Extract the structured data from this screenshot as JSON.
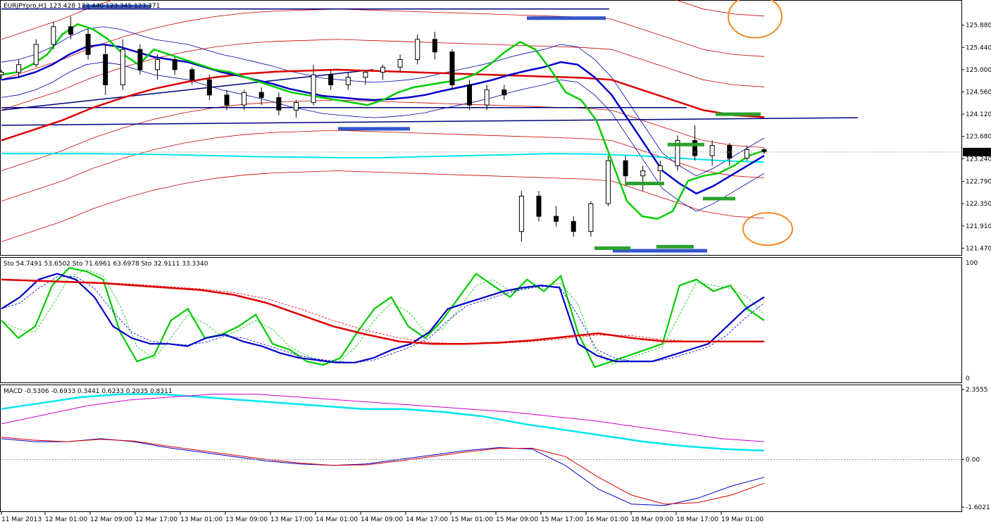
{
  "chart_data": [
    {
      "type": "line",
      "panel": "price",
      "title": "EURJPYpro,H1 123.428 123.440 123.345 123.371",
      "ylim": [
        121.35,
        126.35
      ],
      "y_ticks": [
        "125.880",
        "125.440",
        "125.000",
        "124.560",
        "124.120",
        "123.680",
        "123.240",
        "122.790",
        "122.350",
        "121.910",
        "121.470"
      ],
      "current_price": "123.371",
      "x_ticks": [
        "11 Mar 2013",
        "12 Mar 01:00",
        "12 Mar 09:00",
        "12 Mar 17:00",
        "13 Mar 01:00",
        "13 Mar 09:00",
        "13 Mar 17:00",
        "14 Mar 01:00",
        "14 Mar 09:00",
        "14 Mar 17:00",
        "15 Mar 01:00",
        "15 Mar 09:00",
        "15 Mar 17:00",
        "16 Mar 01:00",
        "18 Mar 09:00",
        "18 Mar 17:00",
        "19 Mar 01:00"
      ],
      "colors": {
        "up_candle": "#ffffff",
        "down_candle": "#000000",
        "ema_fast": "#00cc00",
        "ema_mid": "#0000cc",
        "ema_slow": "#dd0000",
        "bands": "#cc0000",
        "inner_bands": "#0000aa",
        "cyan_line": "#00e5ee",
        "trendline": "#000080",
        "support_marks": "#2ca02c",
        "resistance_marks": "#3355cc",
        "circle": "#f08a24"
      },
      "series": [
        {
          "values": [
            124.9,
            124.95,
            125.1,
            125.3,
            125.7,
            125.9,
            125.8,
            125.6,
            125.3,
            125.1,
            125.4,
            125.3,
            125.2,
            125.1,
            125.0,
            124.95,
            124.85,
            124.75,
            124.65,
            124.55,
            124.5,
            124.45,
            124.4,
            124.35,
            124.3,
            124.4,
            124.55,
            124.65,
            124.7,
            124.75,
            124.8,
            124.9,
            125.1,
            125.35,
            125.55,
            125.4,
            125.0,
            124.55,
            124.4,
            124.0,
            123.2,
            122.4,
            122.1,
            122.05,
            122.2,
            122.8,
            122.9,
            122.95,
            123.1,
            123.3,
            123.4
          ]
        },
        {
          "values": [
            124.8,
            124.85,
            124.95,
            125.1,
            125.3,
            125.45,
            125.5,
            125.45,
            125.35,
            125.25,
            125.2,
            125.15,
            125.05,
            124.95,
            124.88,
            124.8,
            124.72,
            124.62,
            124.55,
            124.48,
            124.45,
            124.42,
            124.4,
            124.42,
            124.45,
            124.5,
            124.58,
            124.65,
            124.72,
            124.8,
            124.9,
            124.98,
            125.05,
            125.15,
            125.1,
            124.85,
            124.5,
            124.0,
            123.5,
            123.0,
            122.75,
            122.55,
            122.7,
            122.9,
            123.1,
            123.3
          ]
        },
        {
          "values": [
            123.6,
            123.8,
            124.0,
            124.25,
            124.45,
            124.62,
            124.75,
            124.85,
            124.92,
            124.96,
            124.98,
            125.0,
            124.98,
            124.96,
            124.94,
            124.92,
            124.9,
            124.88,
            124.86,
            124.84,
            124.8,
            124.6,
            124.4,
            124.2,
            124.1,
            124.06
          ]
        },
        {
          "values": [
            123.34,
            123.34,
            123.34,
            123.33,
            123.32,
            123.3,
            123.28,
            123.27,
            123.26,
            123.26,
            123.28,
            123.3,
            123.32,
            123.34,
            123.33,
            123.3,
            123.25,
            123.2,
            123.17
          ]
        }
      ],
      "candles": [
        {
          "o": 124.9,
          "h": 125.0,
          "l": 124.8,
          "c": 124.95
        },
        {
          "o": 124.95,
          "h": 125.2,
          "l": 124.85,
          "c": 125.1
        },
        {
          "o": 125.1,
          "h": 125.6,
          "l": 125.05,
          "c": 125.5
        },
        {
          "o": 125.5,
          "h": 125.95,
          "l": 125.4,
          "c": 125.85
        },
        {
          "o": 125.85,
          "h": 126.05,
          "l": 125.6,
          "c": 125.7
        },
        {
          "o": 125.7,
          "h": 125.8,
          "l": 125.2,
          "c": 125.3
        },
        {
          "o": 125.3,
          "h": 125.5,
          "l": 124.5,
          "c": 124.7
        },
        {
          "o": 124.7,
          "h": 125.6,
          "l": 124.6,
          "c": 125.4
        },
        {
          "o": 125.4,
          "h": 125.5,
          "l": 124.9,
          "c": 125.0
        },
        {
          "o": 125.0,
          "h": 125.3,
          "l": 124.8,
          "c": 125.2
        },
        {
          "o": 125.2,
          "h": 125.25,
          "l": 124.9,
          "c": 125.0
        },
        {
          "o": 125.0,
          "h": 125.05,
          "l": 124.7,
          "c": 124.8
        },
        {
          "o": 124.8,
          "h": 124.9,
          "l": 124.4,
          "c": 124.5
        },
        {
          "o": 124.5,
          "h": 124.6,
          "l": 124.2,
          "c": 124.3
        },
        {
          "o": 124.3,
          "h": 124.6,
          "l": 124.2,
          "c": 124.55
        },
        {
          "o": 124.55,
          "h": 124.65,
          "l": 124.3,
          "c": 124.45
        },
        {
          "o": 124.45,
          "h": 124.55,
          "l": 124.1,
          "c": 124.2
        },
        {
          "o": 124.2,
          "h": 124.4,
          "l": 124.05,
          "c": 124.35
        },
        {
          "o": 124.35,
          "h": 125.1,
          "l": 124.3,
          "c": 124.9
        },
        {
          "o": 124.9,
          "h": 125.0,
          "l": 124.6,
          "c": 124.7
        },
        {
          "o": 124.7,
          "h": 124.95,
          "l": 124.6,
          "c": 124.85
        },
        {
          "o": 124.85,
          "h": 125.0,
          "l": 124.7,
          "c": 124.95
        },
        {
          "o": 124.95,
          "h": 125.1,
          "l": 124.8,
          "c": 125.05
        },
        {
          "o": 125.05,
          "h": 125.3,
          "l": 124.95,
          "c": 125.2
        },
        {
          "o": 125.2,
          "h": 125.7,
          "l": 125.1,
          "c": 125.6
        },
        {
          "o": 125.6,
          "h": 125.75,
          "l": 125.2,
          "c": 125.35
        },
        {
          "o": 125.35,
          "h": 125.4,
          "l": 124.6,
          "c": 124.7
        },
        {
          "o": 124.7,
          "h": 124.8,
          "l": 124.2,
          "c": 124.3
        },
        {
          "o": 124.3,
          "h": 124.7,
          "l": 124.2,
          "c": 124.6
        },
        {
          "o": 124.6,
          "h": 124.7,
          "l": 124.4,
          "c": 124.5
        },
        {
          "o": 121.8,
          "h": 122.6,
          "l": 121.6,
          "c": 122.5
        },
        {
          "o": 122.5,
          "h": 122.6,
          "l": 122.0,
          "c": 122.1
        },
        {
          "o": 122.1,
          "h": 122.3,
          "l": 121.9,
          "c": 122.0
        },
        {
          "o": 122.0,
          "h": 122.1,
          "l": 121.7,
          "c": 121.8
        },
        {
          "o": 121.8,
          "h": 122.4,
          "l": 121.7,
          "c": 122.35
        },
        {
          "o": 122.35,
          "h": 123.3,
          "l": 122.3,
          "c": 123.2
        },
        {
          "o": 123.2,
          "h": 123.3,
          "l": 122.7,
          "c": 122.9
        },
        {
          "o": 122.9,
          "h": 123.1,
          "l": 122.6,
          "c": 123.0
        },
        {
          "o": 123.0,
          "h": 123.2,
          "l": 122.8,
          "c": 123.1
        },
        {
          "o": 123.1,
          "h": 123.7,
          "l": 123.0,
          "c": 123.6
        },
        {
          "o": 123.6,
          "h": 123.9,
          "l": 123.2,
          "c": 123.3
        },
        {
          "o": 123.3,
          "h": 123.6,
          "l": 123.1,
          "c": 123.5
        },
        {
          "o": 123.5,
          "h": 123.55,
          "l": 123.1,
          "c": 123.25
        },
        {
          "o": 123.25,
          "h": 123.5,
          "l": 123.2,
          "c": 123.42
        },
        {
          "o": 123.42,
          "h": 123.45,
          "l": 123.34,
          "c": 123.37
        }
      ]
    },
    {
      "type": "line",
      "panel": "stochastic",
      "title": "Sto 54.7491 53.6502  Sto 71.6961 63.6978  Sto 32.9111 33.3340",
      "ylim": [
        0,
        100
      ],
      "y_ticks": [
        "100",
        "0"
      ],
      "series": [
        {
          "values": [
            50,
            35,
            45,
            80,
            95,
            92,
            85,
            40,
            15,
            20,
            50,
            60,
            35,
            38,
            45,
            55,
            30,
            25,
            15,
            12,
            18,
            40,
            60,
            70,
            45,
            35,
            50,
            70,
            90,
            80,
            70,
            85,
            75,
            88,
            40,
            10,
            15,
            20,
            25,
            30,
            80,
            85,
            75,
            80,
            60,
            50
          ]
        },
        {
          "values": [
            60,
            70,
            85,
            90,
            85,
            70,
            45,
            35,
            30,
            30,
            28,
            35,
            38,
            32,
            28,
            22,
            18,
            16,
            14,
            14,
            18,
            25,
            30,
            40,
            60,
            65,
            70,
            75,
            78,
            80,
            78,
            30,
            20,
            15,
            15,
            15,
            20,
            25,
            30,
            45,
            60,
            70
          ]
        },
        {
          "values": [
            85,
            84,
            83,
            82,
            80,
            78,
            76,
            72,
            65,
            55,
            45,
            38,
            32,
            30,
            30,
            31,
            33,
            36,
            39,
            35,
            32,
            32,
            32,
            32
          ]
        }
      ]
    },
    {
      "type": "line",
      "panel": "macd",
      "title": "MACD -0.5306 -0.6933 0.3441 0.6233 0.2035 0.8311",
      "ylim": [
        -1.6021,
        2.3555
      ],
      "y_ticks": [
        "2.3555",
        "0.00",
        "-1.6021"
      ],
      "series": [
        {
          "values": [
            1.7,
            1.9,
            2.1,
            2.2,
            2.2,
            2.1,
            2.0,
            1.9,
            1.8,
            1.7,
            1.7,
            1.6,
            1.45,
            1.2,
            1.0,
            0.8,
            0.6,
            0.45,
            0.35,
            0.3
          ]
        },
        {
          "values": [
            1.2,
            1.5,
            1.8,
            2.0,
            2.1,
            2.2,
            2.2,
            2.1,
            2.0,
            1.9,
            1.8,
            1.7,
            1.6,
            1.45,
            1.3,
            1.1,
            0.9,
            0.7,
            0.6
          ]
        },
        {
          "values": [
            0.7,
            0.6,
            0.6,
            0.7,
            0.6,
            0.4,
            0.25,
            0.1,
            -0.05,
            -0.15,
            -0.2,
            -0.15,
            0.0,
            0.15,
            0.3,
            0.4,
            0.35,
            -0.2,
            -1.0,
            -1.5,
            -1.55,
            -1.3,
            -0.9,
            -0.6
          ]
        },
        {
          "values": [
            0.75,
            0.65,
            0.6,
            0.68,
            0.62,
            0.45,
            0.3,
            0.15,
            0.0,
            -0.12,
            -0.2,
            -0.18,
            -0.05,
            0.1,
            0.25,
            0.37,
            0.38,
            0.1,
            -0.6,
            -1.2,
            -1.5,
            -1.45,
            -1.2,
            -0.8
          ]
        }
      ]
    }
  ]
}
